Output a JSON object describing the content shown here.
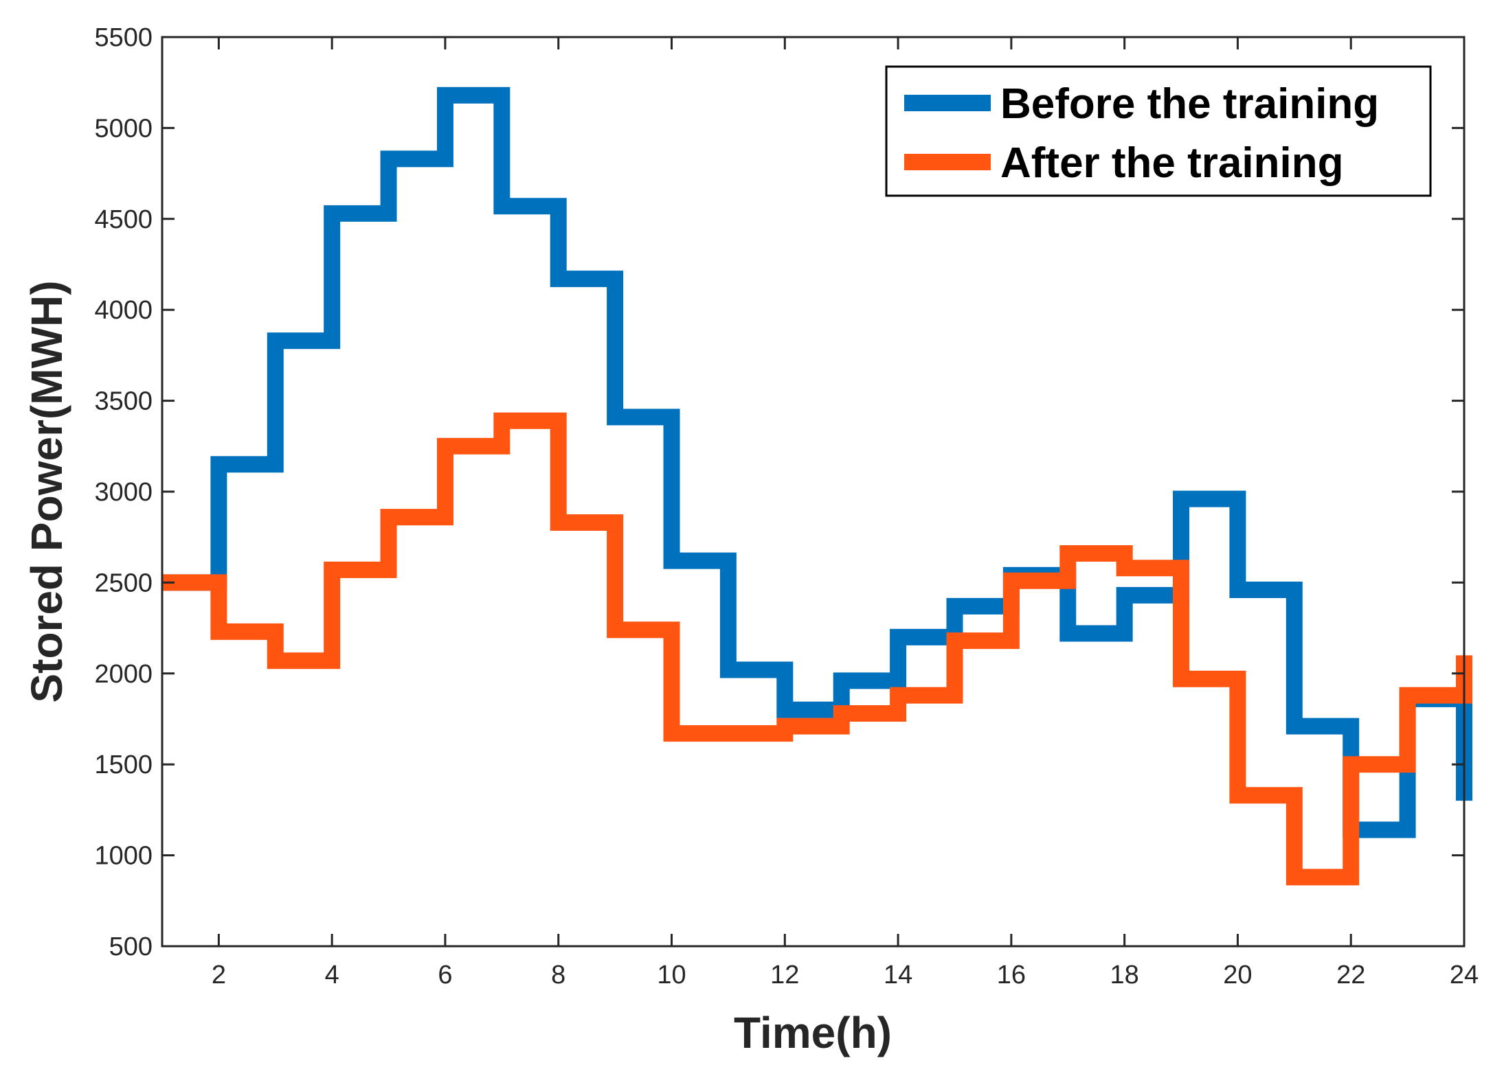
{
  "chart_data": {
    "type": "line",
    "style": "stairs",
    "title": "",
    "xlabel": "Time(h)",
    "ylabel": "Stored Power(MWH)",
    "xlim": [
      1,
      24
    ],
    "ylim": [
      500,
      5500
    ],
    "xticks": [
      2,
      4,
      6,
      8,
      10,
      12,
      14,
      16,
      18,
      20,
      22,
      24
    ],
    "yticks": [
      500,
      1000,
      1500,
      2000,
      2500,
      3000,
      3500,
      4000,
      4500,
      5000,
      5500
    ],
    "legend_position": "top-right",
    "x": [
      1,
      2,
      3,
      4,
      5,
      6,
      7,
      8,
      9,
      10,
      11,
      12,
      13,
      14,
      15,
      16,
      17,
      18,
      19,
      20,
      21,
      22,
      23,
      24
    ],
    "series": [
      {
        "name": "Before the training",
        "color": "#0072BD",
        "values": [
          2500,
          3150,
          3830,
          4530,
          4830,
          5180,
          4570,
          4170,
          3410,
          2620,
          2020,
          1800,
          1960,
          2200,
          2370,
          2540,
          2220,
          2430,
          2960,
          2460,
          1710,
          1140,
          1860,
          1300
        ]
      },
      {
        "name": "After the training",
        "color": "#FF5511",
        "values": [
          2500,
          2230,
          2070,
          2570,
          2860,
          3250,
          3390,
          2830,
          2240,
          1670,
          1670,
          1710,
          1780,
          1880,
          2180,
          2510,
          2660,
          2580,
          1970,
          1330,
          880,
          1500,
          1880,
          2100
        ]
      }
    ]
  }
}
